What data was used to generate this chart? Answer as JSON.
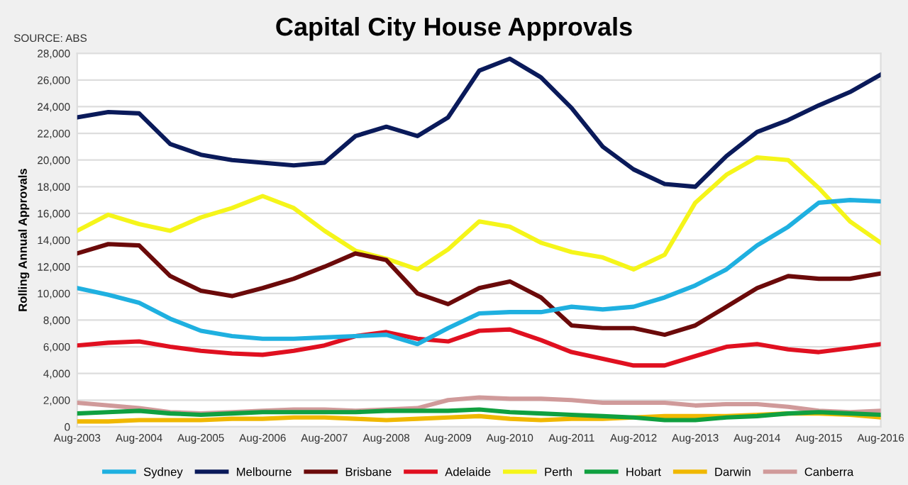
{
  "chart_data": {
    "type": "line",
    "title": "Capital City House Approvals",
    "ylabel": "Rolling Annual Approvals",
    "annotations": [
      "SOURCE: ABS"
    ],
    "x": [
      "2003-08",
      "2004-02",
      "2004-08",
      "2005-02",
      "2005-08",
      "2006-02",
      "2006-08",
      "2007-02",
      "2007-08",
      "2008-02",
      "2008-08",
      "2009-02",
      "2009-08",
      "2010-02",
      "2010-08",
      "2011-02",
      "2011-08",
      "2012-02",
      "2012-08",
      "2013-02",
      "2013-08",
      "2014-02",
      "2014-08",
      "2015-02",
      "2015-08",
      "2016-02",
      "2016-08"
    ],
    "series": [
      {
        "name": "Sydney",
        "color": "#1fb0e0",
        "values": [
          10400,
          9900,
          9300,
          8100,
          7200,
          6800,
          6600,
          6600,
          6700,
          6800,
          6900,
          6200,
          7400,
          8500,
          8600,
          8600,
          9000,
          8800,
          9000,
          9700,
          10600,
          11800,
          13600,
          15000,
          16800,
          17000,
          16900
        ]
      },
      {
        "name": "Melbourne",
        "color": "#0a1a5a",
        "values": [
          23200,
          23600,
          23500,
          21200,
          20400,
          20000,
          19800,
          19600,
          19800,
          21800,
          22500,
          21800,
          23200,
          26700,
          27600,
          26200,
          23900,
          21000,
          19300,
          18200,
          18000,
          20300,
          22100,
          23000,
          24100,
          25100,
          26400
        ]
      },
      {
        "name": "Brisbane",
        "color": "#6b0a0a",
        "values": [
          13000,
          13700,
          13600,
          11300,
          10200,
          9800,
          10400,
          11100,
          12000,
          13000,
          12500,
          10000,
          9200,
          10400,
          10900,
          9700,
          7600,
          7400,
          7400,
          6900,
          7600,
          9000,
          10400,
          11300,
          11100,
          11100,
          11500
        ]
      },
      {
        "name": "Adelaide",
        "color": "#e01020",
        "values": [
          6100,
          6300,
          6400,
          6000,
          5700,
          5500,
          5400,
          5700,
          6100,
          6800,
          7100,
          6600,
          6400,
          7200,
          7300,
          6500,
          5600,
          5100,
          4600,
          4600,
          5300,
          6000,
          6200,
          5800,
          5600,
          5900,
          6200
        ]
      },
      {
        "name": "Perth",
        "color": "#f5f51a",
        "values": [
          14700,
          15900,
          15200,
          14700,
          15700,
          16400,
          17300,
          16400,
          14700,
          13200,
          12600,
          11800,
          13300,
          15400,
          15000,
          13800,
          13100,
          12700,
          11800,
          12900,
          16800,
          18900,
          20200,
          20000,
          17900,
          15400,
          13800
        ]
      },
      {
        "name": "Hobart",
        "color": "#10a040",
        "values": [
          1000,
          1100,
          1200,
          1000,
          900,
          1000,
          1100,
          1100,
          1100,
          1100,
          1200,
          1200,
          1200,
          1300,
          1100,
          1000,
          900,
          800,
          700,
          500,
          500,
          700,
          800,
          1000,
          1100,
          1000,
          900
        ]
      },
      {
        "name": "Darwin",
        "color": "#f0b800",
        "values": [
          400,
          400,
          500,
          500,
          500,
          600,
          600,
          700,
          700,
          600,
          500,
          600,
          700,
          800,
          600,
          500,
          600,
          600,
          700,
          800,
          800,
          800,
          900,
          1000,
          1000,
          900,
          700
        ]
      },
      {
        "name": "Canberra",
        "color": "#d09a9a",
        "values": [
          1800,
          1600,
          1400,
          1100,
          1000,
          1100,
          1200,
          1300,
          1300,
          1200,
          1300,
          1400,
          2000,
          2200,
          2100,
          2100,
          2000,
          1800,
          1800,
          1800,
          1600,
          1700,
          1700,
          1500,
          1200,
          1100,
          1200
        ]
      }
    ],
    "xlim": [
      "2003-08",
      "2016-08"
    ],
    "xticks": [
      {
        "value": "2003-08",
        "label": "Aug-2003"
      },
      {
        "value": "2004-08",
        "label": "Aug-2004"
      },
      {
        "value": "2005-08",
        "label": "Aug-2005"
      },
      {
        "value": "2006-08",
        "label": "Aug-2006"
      },
      {
        "value": "2007-08",
        "label": "Aug-2007"
      },
      {
        "value": "2008-08",
        "label": "Aug-2008"
      },
      {
        "value": "2009-08",
        "label": "Aug-2009"
      },
      {
        "value": "2010-08",
        "label": "Aug-2010"
      },
      {
        "value": "2011-08",
        "label": "Aug-2011"
      },
      {
        "value": "2012-08",
        "label": "Aug-2012"
      },
      {
        "value": "2013-08",
        "label": "Aug-2013"
      },
      {
        "value": "2014-08",
        "label": "Aug-2014"
      },
      {
        "value": "2015-08",
        "label": "Aug-2015"
      },
      {
        "value": "2016-08",
        "label": "Aug-2016"
      }
    ],
    "ylim": [
      0,
      28000
    ],
    "yticks": [
      {
        "value": 0,
        "label": "0"
      },
      {
        "value": 2000,
        "label": "2,000"
      },
      {
        "value": 4000,
        "label": "4,000"
      },
      {
        "value": 6000,
        "label": "6,000"
      },
      {
        "value": 8000,
        "label": "8,000"
      },
      {
        "value": 10000,
        "label": "10,000"
      },
      {
        "value": 12000,
        "label": "12,000"
      },
      {
        "value": 14000,
        "label": "14,000"
      },
      {
        "value": 16000,
        "label": "16,000"
      },
      {
        "value": 18000,
        "label": "18,000"
      },
      {
        "value": 20000,
        "label": "20,000"
      },
      {
        "value": 22000,
        "label": "22,000"
      },
      {
        "value": 24000,
        "label": "24,000"
      },
      {
        "value": 26000,
        "label": "26,000"
      },
      {
        "value": 28000,
        "label": "28,000"
      }
    ],
    "grid": "y",
    "legend": "bottom",
    "marker": "none",
    "line_style": "solid"
  }
}
